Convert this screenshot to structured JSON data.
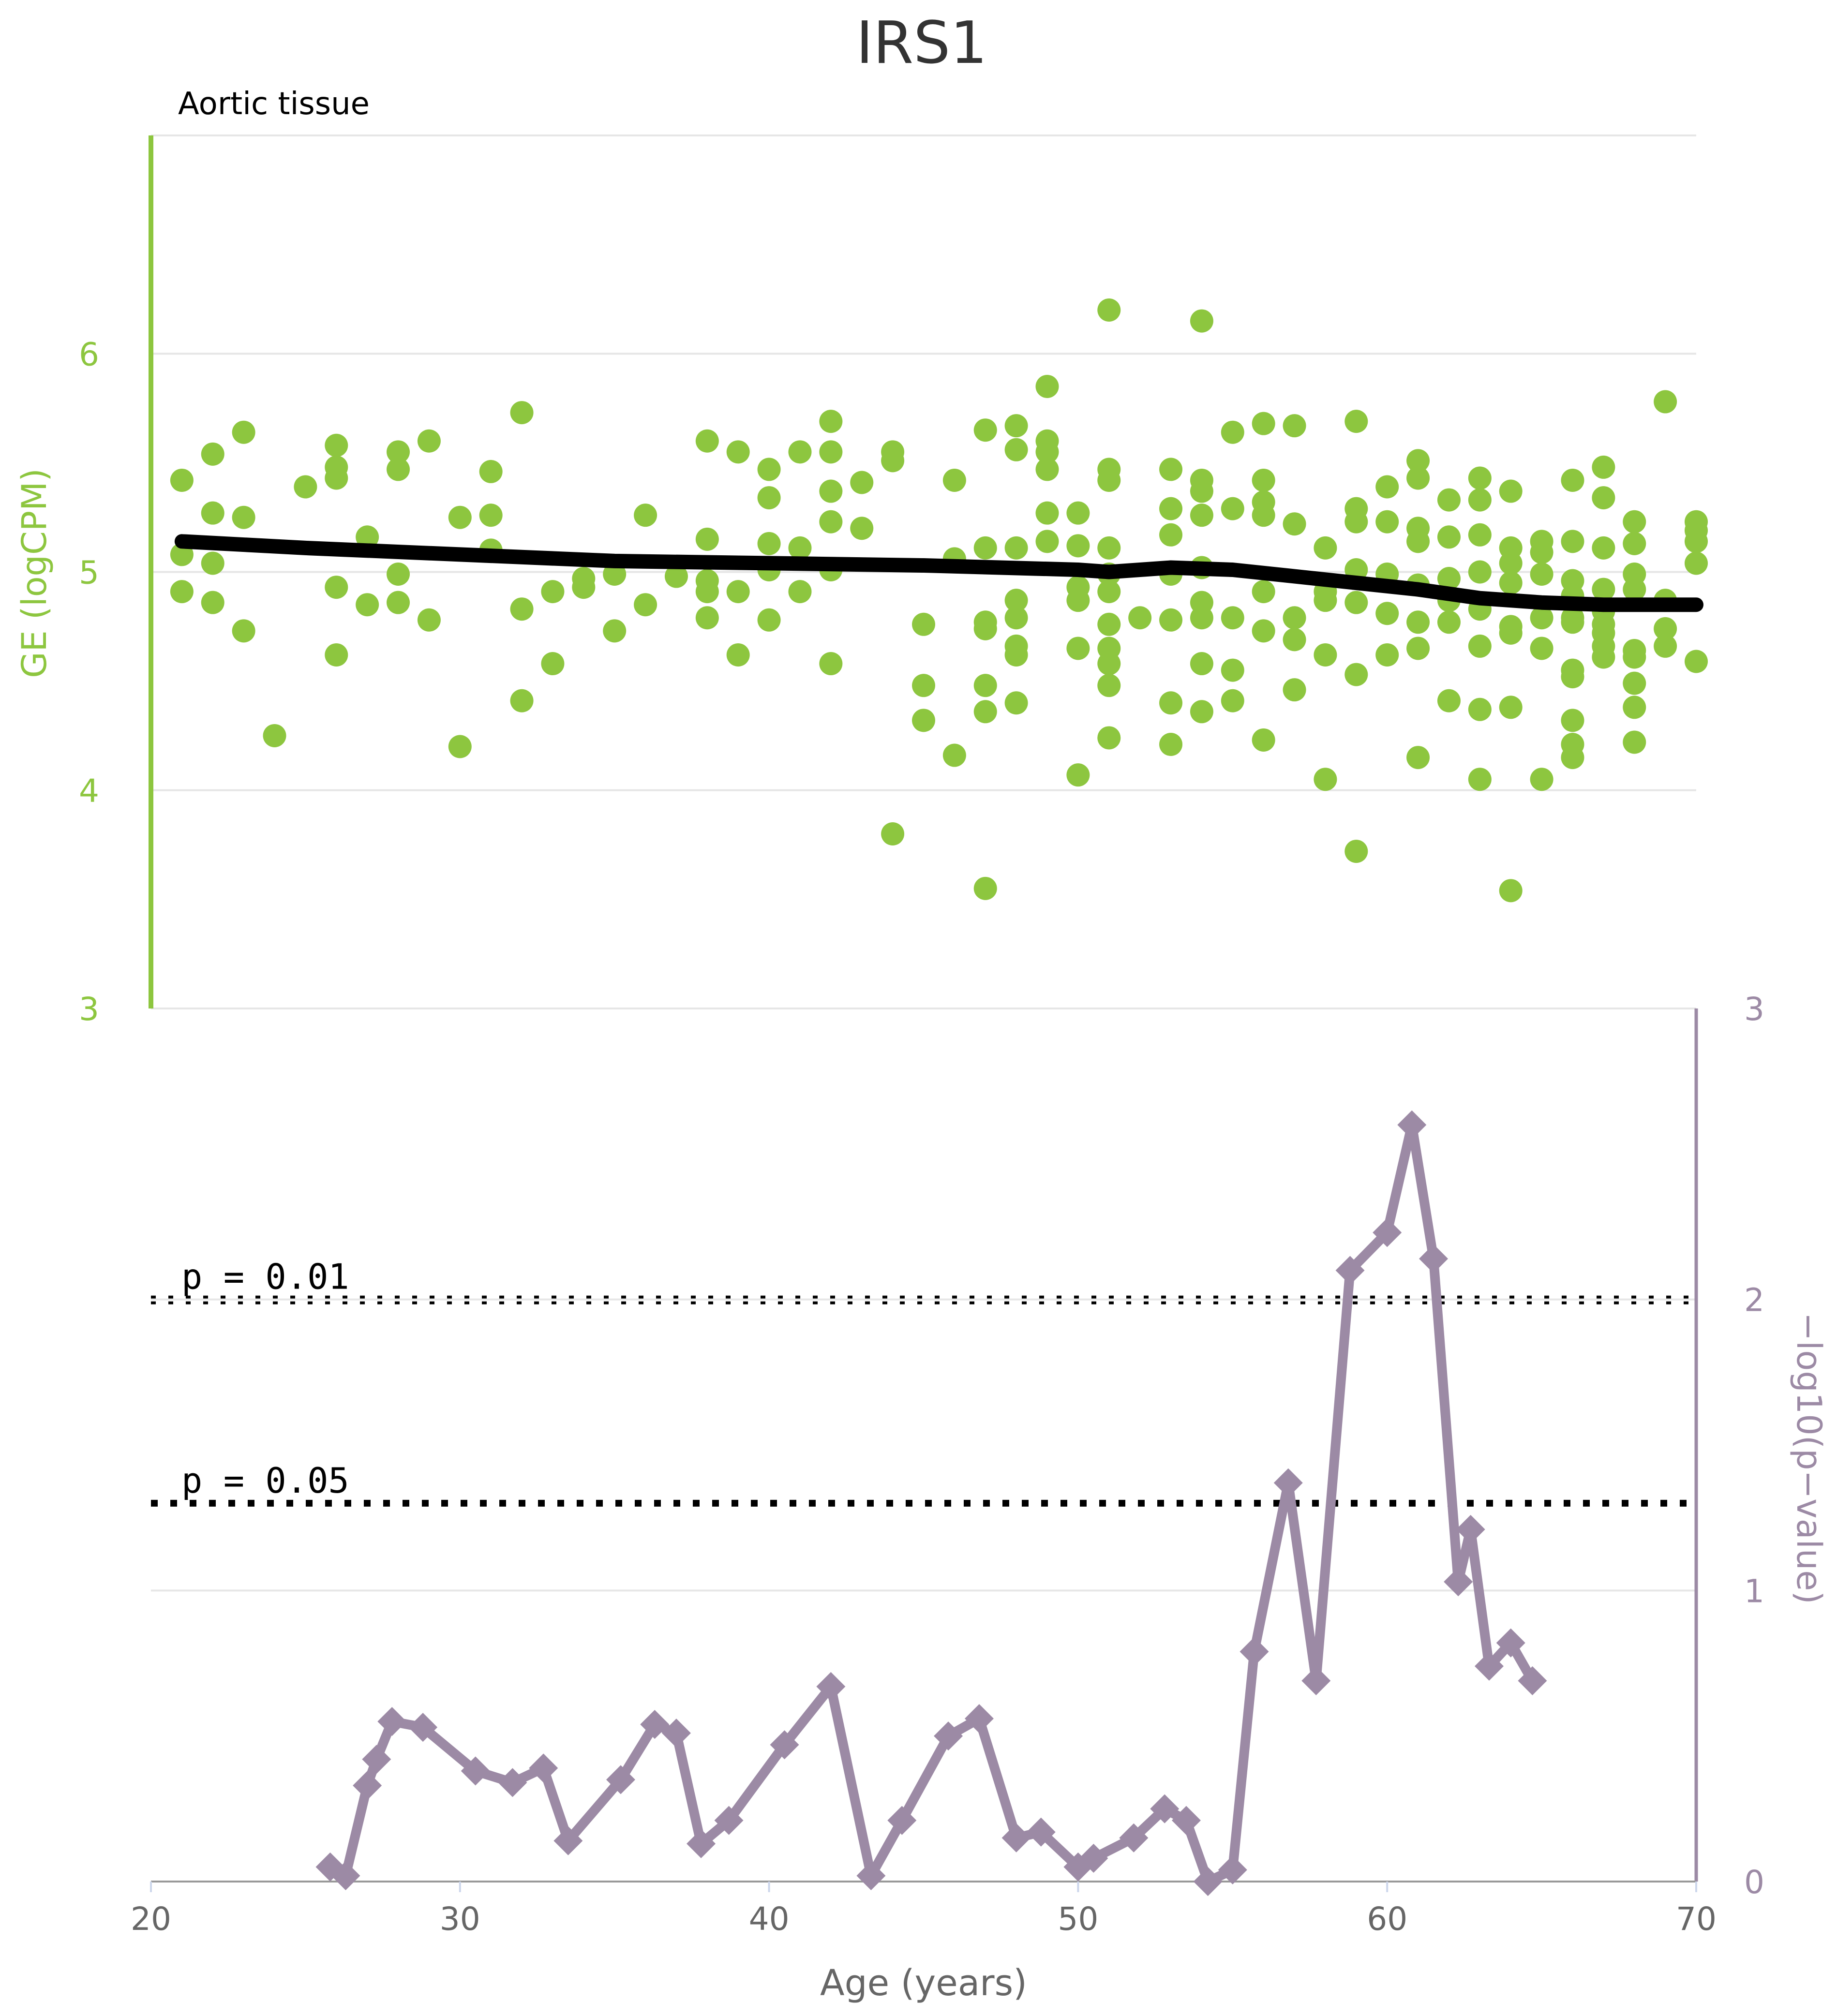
{
  "chart_data": [
    {
      "type": "scatter",
      "title": "IRS1",
      "subtitle": "Aortic tissue",
      "xlabel": "Age (years)",
      "ylabel": "GE (logCPM)",
      "xlim": [
        20,
        70
      ],
      "ylim": [
        3,
        7
      ],
      "yticks": [
        3,
        4,
        5,
        6
      ],
      "grid": true,
      "colors": {
        "points": "#8dc63f",
        "trend": "#000000"
      },
      "series": [
        {
          "points": [
            [
              21,
              5.42
            ],
            [
              21,
              5.08
            ],
            [
              21,
              4.91
            ],
            [
              22,
              5.54
            ],
            [
              22,
              5.27
            ],
            [
              22,
              5.04
            ],
            [
              22,
              4.86
            ],
            [
              23,
              5.64
            ],
            [
              23,
              5.25
            ],
            [
              23,
              4.73
            ],
            [
              24,
              4.25
            ],
            [
              25,
              5.39
            ],
            [
              26,
              5.58
            ],
            [
              26,
              5.48
            ],
            [
              26,
              5.43
            ],
            [
              26,
              4.93
            ],
            [
              26,
              4.62
            ],
            [
              27,
              5.16
            ],
            [
              27,
              4.85
            ],
            [
              28,
              5.55
            ],
            [
              28,
              5.47
            ],
            [
              28,
              4.99
            ],
            [
              28,
              4.86
            ],
            [
              29,
              5.6
            ],
            [
              29,
              4.78
            ],
            [
              30,
              5.25
            ],
            [
              30,
              4.2
            ],
            [
              31,
              5.46
            ],
            [
              31,
              5.26
            ],
            [
              31,
              5.1
            ],
            [
              32,
              5.73
            ],
            [
              32,
              4.83
            ],
            [
              32,
              4.41
            ],
            [
              33,
              4.91
            ],
            [
              33,
              4.58
            ],
            [
              34,
              4.97
            ],
            [
              34,
              4.93
            ],
            [
              35,
              4.99
            ],
            [
              35,
              4.73
            ],
            [
              36,
              5.26
            ],
            [
              36,
              4.85
            ],
            [
              37,
              4.98
            ],
            [
              38,
              5.6
            ],
            [
              38,
              5.15
            ],
            [
              38,
              4.96
            ],
            [
              38,
              4.91
            ],
            [
              38,
              4.79
            ],
            [
              39,
              5.55
            ],
            [
              39,
              4.91
            ],
            [
              39,
              4.62
            ],
            [
              40,
              5.47
            ],
            [
              40,
              5.34
            ],
            [
              40,
              5.13
            ],
            [
              40,
              5.01
            ],
            [
              40,
              4.78
            ],
            [
              41,
              5.55
            ],
            [
              41,
              5.11
            ],
            [
              41,
              4.91
            ],
            [
              42,
              5.69
            ],
            [
              42,
              5.55
            ],
            [
              42,
              5.37
            ],
            [
              42,
              5.23
            ],
            [
              42,
              5.01
            ],
            [
              42,
              4.58
            ],
            [
              43,
              5.41
            ],
            [
              43,
              5.2
            ],
            [
              44,
              5.55
            ],
            [
              44,
              5.51
            ],
            [
              44,
              3.8
            ],
            [
              45,
              4.76
            ],
            [
              45,
              4.48
            ],
            [
              45,
              4.32
            ],
            [
              46,
              5.42
            ],
            [
              46,
              5.06
            ],
            [
              46,
              4.16
            ],
            [
              47,
              5.65
            ],
            [
              47,
              5.11
            ],
            [
              47,
              4.77
            ],
            [
              47,
              4.74
            ],
            [
              47,
              4.48
            ],
            [
              47,
              4.36
            ],
            [
              47,
              3.55
            ],
            [
              48,
              5.67
            ],
            [
              48,
              5.56
            ],
            [
              48,
              5.11
            ],
            [
              48,
              4.87
            ],
            [
              48,
              4.79
            ],
            [
              48,
              4.66
            ],
            [
              48,
              4.62
            ],
            [
              48,
              4.4
            ],
            [
              49,
              5.85
            ],
            [
              49,
              5.6
            ],
            [
              49,
              5.55
            ],
            [
              49,
              5.47
            ],
            [
              49,
              5.27
            ],
            [
              49,
              5.14
            ],
            [
              50,
              5.27
            ],
            [
              50,
              5.12
            ],
            [
              50,
              4.93
            ],
            [
              50,
              4.87
            ],
            [
              50,
              4.65
            ],
            [
              50,
              4.07
            ],
            [
              51,
              6.2
            ],
            [
              51,
              5.47
            ],
            [
              51,
              5.42
            ],
            [
              51,
              5.11
            ],
            [
              51,
              4.99
            ],
            [
              51,
              4.91
            ],
            [
              51,
              4.76
            ],
            [
              51,
              4.65
            ],
            [
              51,
              4.58
            ],
            [
              51,
              4.48
            ],
            [
              51,
              4.24
            ],
            [
              52,
              4.79
            ],
            [
              53,
              5.47
            ],
            [
              53,
              5.29
            ],
            [
              53,
              5.17
            ],
            [
              53,
              4.99
            ],
            [
              53,
              4.78
            ],
            [
              53,
              4.4
            ],
            [
              53,
              4.21
            ],
            [
              54,
              6.15
            ],
            [
              54,
              5.42
            ],
            [
              54,
              5.37
            ],
            [
              54,
              5.26
            ],
            [
              54,
              5.02
            ],
            [
              54,
              4.86
            ],
            [
              54,
              4.79
            ],
            [
              54,
              4.58
            ],
            [
              54,
              4.36
            ],
            [
              55,
              5.64
            ],
            [
              55,
              5.29
            ],
            [
              55,
              4.79
            ],
            [
              55,
              4.55
            ],
            [
              55,
              4.41
            ],
            [
              56,
              5.68
            ],
            [
              56,
              5.42
            ],
            [
              56,
              5.32
            ],
            [
              56,
              5.26
            ],
            [
              56,
              4.91
            ],
            [
              56,
              4.73
            ],
            [
              56,
              4.23
            ],
            [
              57,
              5.67
            ],
            [
              57,
              5.22
            ],
            [
              57,
              4.79
            ],
            [
              57,
              4.69
            ],
            [
              57,
              4.46
            ],
            [
              58,
              5.11
            ],
            [
              58,
              4.91
            ],
            [
              58,
              4.87
            ],
            [
              58,
              4.62
            ],
            [
              58,
              4.05
            ],
            [
              59,
              5.69
            ],
            [
              59,
              5.29
            ],
            [
              59,
              5.23
            ],
            [
              59,
              5.01
            ],
            [
              59,
              4.86
            ],
            [
              59,
              4.53
            ],
            [
              59,
              3.72
            ],
            [
              60,
              5.39
            ],
            [
              60,
              5.23
            ],
            [
              60,
              4.99
            ],
            [
              60,
              4.81
            ],
            [
              60,
              4.62
            ],
            [
              61,
              5.51
            ],
            [
              61,
              5.43
            ],
            [
              61,
              5.2
            ],
            [
              61,
              5.14
            ],
            [
              61,
              4.94
            ],
            [
              61,
              4.77
            ],
            [
              61,
              4.65
            ],
            [
              61,
              4.15
            ],
            [
              62,
              5.33
            ],
            [
              62,
              5.16
            ],
            [
              62,
              4.97
            ],
            [
              62,
              4.87
            ],
            [
              62,
              4.77
            ],
            [
              62,
              4.41
            ],
            [
              63,
              5.43
            ],
            [
              63,
              5.33
            ],
            [
              63,
              5.17
            ],
            [
              63,
              5.0
            ],
            [
              63,
              4.83
            ],
            [
              63,
              4.66
            ],
            [
              63,
              4.37
            ],
            [
              63,
              4.05
            ],
            [
              64,
              5.37
            ],
            [
              64,
              5.11
            ],
            [
              64,
              5.04
            ],
            [
              64,
              4.95
            ],
            [
              64,
              4.75
            ],
            [
              64,
              4.72
            ],
            [
              64,
              4.38
            ],
            [
              64,
              3.54
            ],
            [
              65,
              5.14
            ],
            [
              65,
              5.09
            ],
            [
              65,
              4.99
            ],
            [
              65,
              4.79
            ],
            [
              65,
              4.65
            ],
            [
              65,
              4.05
            ],
            [
              66,
              5.42
            ],
            [
              66,
              5.14
            ],
            [
              66,
              4.96
            ],
            [
              66,
              4.89
            ],
            [
              66,
              4.79
            ],
            [
              66,
              4.77
            ],
            [
              66,
              4.55
            ],
            [
              66,
              4.52
            ],
            [
              66,
              4.32
            ],
            [
              66,
              4.21
            ],
            [
              66,
              4.15
            ],
            [
              67,
              5.48
            ],
            [
              67,
              5.34
            ],
            [
              67,
              5.11
            ],
            [
              67,
              4.92
            ],
            [
              67,
              4.82
            ],
            [
              67,
              4.76
            ],
            [
              67,
              4.72
            ],
            [
              67,
              4.66
            ],
            [
              67,
              4.61
            ],
            [
              68,
              5.23
            ],
            [
              68,
              5.13
            ],
            [
              68,
              4.99
            ],
            [
              68,
              4.92
            ],
            [
              68,
              4.64
            ],
            [
              68,
              4.61
            ],
            [
              68,
              4.49
            ],
            [
              68,
              4.38
            ],
            [
              68,
              4.22
            ],
            [
              69,
              5.78
            ],
            [
              69,
              4.87
            ],
            [
              69,
              4.74
            ],
            [
              69,
              4.66
            ],
            [
              70,
              5.23
            ],
            [
              70,
              5.19
            ],
            [
              70,
              5.14
            ],
            [
              70,
              5.04
            ],
            [
              70,
              4.59
            ]
          ]
        },
        {
          "line": true,
          "points": [
            [
              21,
              5.14
            ],
            [
              25,
              5.11
            ],
            [
              30,
              5.08
            ],
            [
              35,
              5.05
            ],
            [
              40,
              5.04
            ],
            [
              45,
              5.03
            ],
            [
              50,
              5.01
            ],
            [
              51,
              5.0
            ],
            [
              53,
              5.02
            ],
            [
              55,
              5.01
            ],
            [
              57,
              4.98
            ],
            [
              59,
              4.95
            ],
            [
              61,
              4.92
            ],
            [
              63,
              4.88
            ],
            [
              65,
              4.86
            ],
            [
              67,
              4.85
            ],
            [
              70,
              4.85
            ]
          ]
        }
      ]
    },
    {
      "type": "line",
      "xlabel": "Age (years)",
      "ylabel": "−log10(p−value)",
      "xlim": [
        20,
        70
      ],
      "ylim": [
        0,
        3
      ],
      "yticks": [
        0,
        1,
        2,
        3
      ],
      "xticks": [
        20,
        30,
        40,
        50,
        60,
        70
      ],
      "grid": true,
      "colors": {
        "line": "#9c8aa5",
        "threshold": "#000000"
      },
      "thresholds": [
        {
          "label": "p = 0.01",
          "value": 2.0
        },
        {
          "label": "p = 0.05",
          "value": 1.3
        }
      ],
      "x": [
        25.8,
        26.3,
        27.0,
        27.3,
        27.8,
        28.8,
        30.5,
        31.7,
        32.7,
        33.5,
        35.2,
        36.3,
        37.0,
        37.8,
        38.7,
        40.5,
        42.0,
        43.3,
        44.3,
        45.8,
        46.8,
        48.0,
        48.8,
        50.0,
        50.5,
        51.8,
        52.8,
        53.5,
        54.2,
        55.0,
        55.7,
        56.8,
        57.7,
        58.8,
        60.0,
        60.8,
        61.5,
        62.3,
        62.7,
        63.3,
        64.0,
        64.7
      ],
      "values": [
        0.05,
        0.02,
        0.33,
        0.42,
        0.55,
        0.53,
        0.38,
        0.34,
        0.39,
        0.14,
        0.35,
        0.54,
        0.51,
        0.13,
        0.21,
        0.47,
        0.67,
        0.02,
        0.21,
        0.5,
        0.56,
        0.15,
        0.17,
        0.05,
        0.08,
        0.15,
        0.25,
        0.21,
        0.0,
        0.04,
        0.79,
        1.37,
        0.69,
        2.1,
        2.23,
        2.6,
        2.14,
        1.03,
        1.21,
        0.74,
        0.82,
        0.69
      ]
    }
  ]
}
